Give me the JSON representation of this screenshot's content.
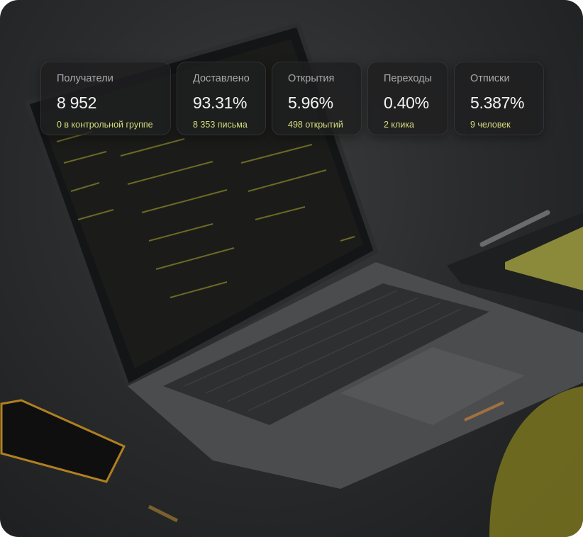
{
  "stats": [
    {
      "label": "Получатели",
      "value": "8 952",
      "sub": "0 в контрольной группе"
    },
    {
      "label": "Доставлено",
      "value": "93.31%",
      "sub": "8 353 письма"
    },
    {
      "label": "Открытия",
      "value": "5.96%",
      "sub": "498 открытий"
    },
    {
      "label": "Переходы",
      "value": "0.40%",
      "sub": "2 клика"
    },
    {
      "label": "Отписки",
      "value": "5.387%",
      "sub": "9 человек"
    }
  ],
  "colors": {
    "accent_sub": "#d6de7c",
    "card_bg": "#1e1f20",
    "laptop_body": "#4a4b4c",
    "notebook": "#8a8a3a"
  }
}
